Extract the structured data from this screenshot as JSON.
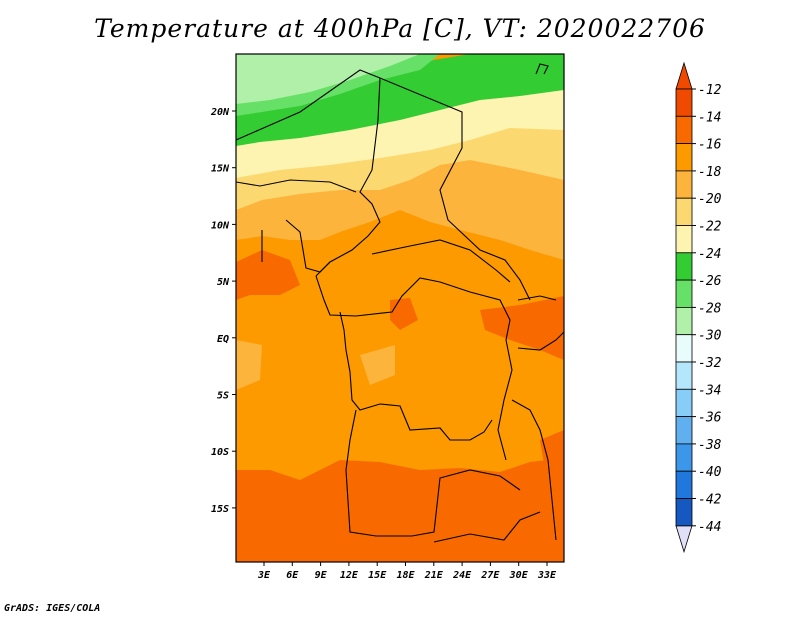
{
  "title": "Temperature at 400hPa [C], VT: 2020022706",
  "credit": "GrADS: IGES/COLA",
  "lat_ticks": [
    "20N",
    "15N",
    "10N",
    "5N",
    "EQ",
    "5S",
    "10S",
    "15S"
  ],
  "lon_ticks": [
    "3E",
    "6E",
    "9E",
    "12E",
    "15E",
    "18E",
    "21E",
    "24E",
    "27E",
    "30E",
    "33E"
  ],
  "colorbar": {
    "labels": [
      "-12",
      "-14",
      "-16",
      "-18",
      "-20",
      "-22",
      "-24",
      "-26",
      "-28",
      "-30",
      "-32",
      "-34",
      "-36",
      "-38",
      "-40",
      "-42",
      "-44"
    ],
    "colors": [
      "#f04a00",
      "#f86a00",
      "#fc9a00",
      "#fcb43c",
      "#fcd870",
      "#fcf4b0",
      "#33cc33",
      "#66e066",
      "#b0f0a8",
      "#e8fcfc",
      "#b4e6fc",
      "#88ccf8",
      "#60b0f0",
      "#3c96ea",
      "#2078dc",
      "#1458c0",
      "#0c3aa0",
      "#081880"
    ],
    "top_color": "#f04a00",
    "bottom_color": "#e0e0f8"
  }
}
